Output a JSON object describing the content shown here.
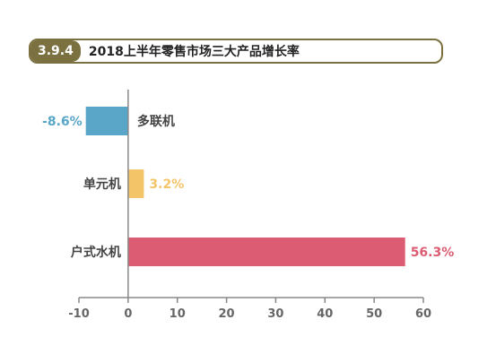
{
  "header": {
    "tag": "3.9.4",
    "title": "2018上半年零售市场三大产品增长率"
  },
  "chart_data": {
    "type": "bar",
    "orientation": "horizontal",
    "categories": [
      "多联机",
      "单元机",
      "户式水机"
    ],
    "values": [
      -8.6,
      3.2,
      56.3
    ],
    "value_labels": [
      "-8.6%",
      "3.2%",
      "56.3%"
    ],
    "colors": [
      "#5aa6c8",
      "#f3c468",
      "#dc5d73"
    ],
    "xlim": [
      -10,
      60
    ],
    "xticks": [
      -10,
      0,
      10,
      20,
      30,
      40,
      50,
      60
    ],
    "title": "2018上半年零售市场三大产品增长率",
    "xlabel": "",
    "ylabel": ""
  }
}
